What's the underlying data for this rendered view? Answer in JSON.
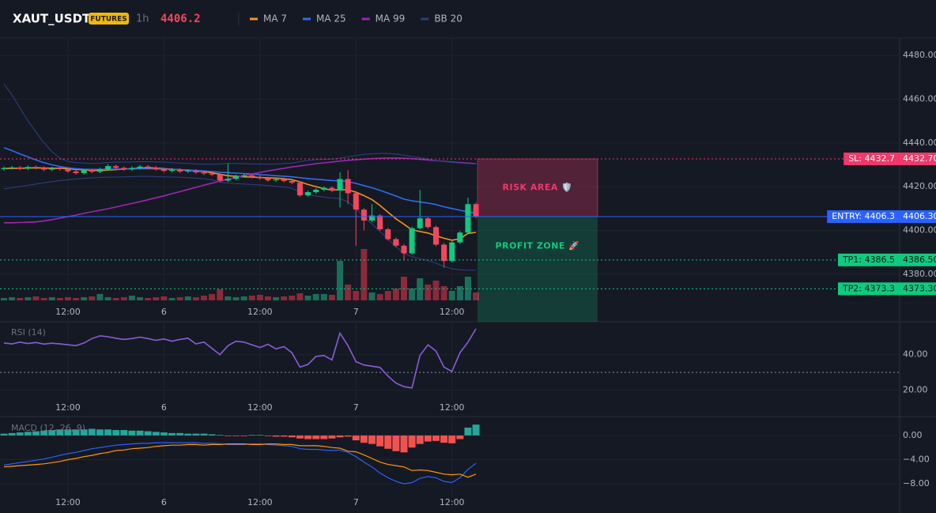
{
  "header": {
    "symbol": "XAUT_USDT",
    "badge": "FUTURES",
    "interval": "1h",
    "last_price": 4406.2
  },
  "chart_data": [
    {
      "type": "candlestick",
      "up_color": "#0ecb81",
      "down_color": "#f6465d",
      "volume_up_color": "#1b6e5c",
      "volume_down_color": "#8a2a3b",
      "grid": true,
      "categories": [
        null,
        null,
        null,
        null,
        null,
        null,
        null,
        null,
        "12:00",
        null,
        null,
        null,
        null,
        null,
        null,
        null,
        null,
        null,
        null,
        null,
        "6",
        null,
        null,
        null,
        null,
        null,
        null,
        null,
        null,
        null,
        null,
        null,
        "12:00",
        null,
        null,
        null,
        null,
        null,
        null,
        null,
        null,
        null,
        null,
        null,
        "7",
        null,
        null,
        null,
        null,
        null,
        null,
        null,
        null,
        null,
        null,
        null,
        "12:00",
        null,
        null,
        null
      ],
      "open": [
        4428.0,
        4428.5,
        4428.8,
        4428.2,
        4429.0,
        4428.6,
        4427.8,
        4428.4,
        4428.0,
        4427.0,
        4426.2,
        4427.5,
        4426.8,
        4428.0,
        4429.4,
        4428.6,
        4427.9,
        4428.5,
        4429.2,
        4428.7,
        4428.0,
        4427.2,
        4427.8,
        4426.9,
        4427.3,
        4426.5,
        4426.0,
        4425.5,
        4422.8,
        4423.6,
        4424.8,
        4425.2,
        4424.5,
        4423.8,
        4422.9,
        4423.4,
        4422.6,
        4421.8,
        4416.0,
        4417.5,
        4418.6,
        4419.5,
        4418.2,
        4423.5,
        4417.0,
        4409.5,
        4404.5,
        4406.8,
        4400.5,
        4396.0,
        4393.0,
        4389.5,
        4401.0,
        4405.5,
        4401.5,
        4393.5,
        4386.0,
        4394.5,
        4399.0,
        4412.0
      ],
      "high": [
        4429.2,
        4429.5,
        4429.5,
        4429.7,
        4429.7,
        4429.3,
        4429.1,
        4429.1,
        4428.7,
        4427.7,
        4428.2,
        4428.2,
        4428.7,
        4430.3,
        4430.1,
        4429.3,
        4429.4,
        4429.9,
        4429.9,
        4429.4,
        4428.7,
        4428.5,
        4428.5,
        4428.0,
        4428.0,
        4427.2,
        4426.7,
        4426.2,
        4430.5,
        4425.5,
        4425.9,
        4425.9,
        4425.2,
        4424.5,
        4424.1,
        4424.1,
        4423.3,
        4422.5,
        4418.2,
        4419.3,
        4420.2,
        4420.2,
        4426.5,
        4427.5,
        4418.0,
        4410.2,
        4412.0,
        4407.5,
        4401.2,
        4396.7,
        4393.7,
        4401.7,
        4418.5,
        4406.5,
        4402.2,
        4394.2,
        4395.2,
        4399.7,
        4415.0,
        4412.7
      ],
      "low": [
        4427.3,
        4427.8,
        4427.5,
        4427.5,
        4427.9,
        4427.1,
        4427.1,
        4427.3,
        4426.3,
        4425.5,
        4425.5,
        4426.1,
        4426.1,
        4427.3,
        4427.9,
        4427.2,
        4427.2,
        4427.8,
        4428.0,
        4427.3,
        4426.5,
        4426.5,
        4426.2,
        4426.2,
        4425.8,
        4425.3,
        4424.8,
        4422.1,
        4422.1,
        4422.9,
        4424.1,
        4423.8,
        4423.1,
        4422.2,
        4422.2,
        4421.9,
        4421.1,
        4415.3,
        4415.3,
        4416.8,
        4417.9,
        4417.5,
        4410.5,
        4412.0,
        4393.0,
        4400.0,
        4403.8,
        4399.8,
        4395.3,
        4392.3,
        4386.5,
        4388.8,
        4400.3,
        4400.8,
        4392.8,
        4383.0,
        4385.3,
        4393.8,
        4398.3,
        4405.5
      ],
      "close": [
        4428.5,
        4428.8,
        4428.2,
        4429.0,
        4428.6,
        4427.8,
        4428.4,
        4428.0,
        4427.0,
        4426.2,
        4427.5,
        4426.8,
        4428.0,
        4429.4,
        4428.6,
        4427.9,
        4428.5,
        4429.2,
        4428.7,
        4428.0,
        4427.2,
        4427.8,
        4426.9,
        4427.3,
        4426.5,
        4426.0,
        4425.5,
        4422.8,
        4423.6,
        4424.8,
        4425.2,
        4424.5,
        4423.8,
        4422.9,
        4423.4,
        4422.6,
        4421.8,
        4416.0,
        4417.5,
        4418.6,
        4419.5,
        4418.2,
        4423.5,
        4417.0,
        4409.5,
        4404.5,
        4406.8,
        4400.5,
        4396.0,
        4393.0,
        4389.5,
        4401.0,
        4405.5,
        4401.5,
        4393.5,
        4386.0,
        4394.5,
        4399.0,
        4412.0,
        4406.2
      ],
      "volume": [
        3,
        4,
        3,
        4,
        5,
        3,
        4,
        3,
        4,
        3,
        4,
        5,
        8,
        4,
        3,
        4,
        6,
        4,
        3,
        4,
        5,
        3,
        4,
        5,
        4,
        6,
        8,
        14,
        5,
        4,
        5,
        6,
        7,
        5,
        4,
        5,
        6,
        9,
        6,
        8,
        8,
        7,
        50,
        20,
        12,
        65,
        10,
        8,
        12,
        15,
        30,
        15,
        28,
        20,
        25,
        18,
        12,
        18,
        30,
        10
      ],
      "series": [
        {
          "name": "MA 7",
          "color": "#f7931a",
          "values": [
            4428.3,
            4428.4,
            4428.4,
            4428.5,
            4428.6,
            4428.5,
            4428.4,
            4428.4,
            4428.2,
            4427.9,
            4427.7,
            4427.5,
            4427.4,
            4427.6,
            4427.8,
            4428.0,
            4428.2,
            4428.5,
            4428.6,
            4428.5,
            4428.2,
            4428.0,
            4427.7,
            4427.5,
            4427.2,
            4426.9,
            4426.4,
            4425.6,
            4425.0,
            4424.7,
            4424.5,
            4424.4,
            4424.2,
            4424.0,
            4423.9,
            4423.6,
            4423.2,
            4422.2,
            4421.0,
            4420.0,
            4419.1,
            4418.4,
            4418.6,
            4418.6,
            4417.5,
            4415.9,
            4414.1,
            4411.4,
            4408.3,
            4405.3,
            4402.8,
            4400.2,
            4399.5,
            4398.8,
            4397.5,
            4396.4,
            4395.5,
            4396.2,
            4398.6,
            4399.1
          ]
        },
        {
          "name": "MA 25",
          "color": "#2f6bf0",
          "values": [
            4437.8,
            4436.5,
            4435.0,
            4433.6,
            4432.2,
            4431.0,
            4430.0,
            4429.2,
            4428.6,
            4428.2,
            4428.0,
            4427.9,
            4427.9,
            4428.0,
            4428.0,
            4428.1,
            4428.1,
            4428.2,
            4428.2,
            4428.1,
            4428.0,
            4427.9,
            4427.8,
            4427.6,
            4427.4,
            4427.2,
            4426.9,
            4426.6,
            4426.4,
            4426.2,
            4426.0,
            4425.8,
            4425.5,
            4425.3,
            4425.0,
            4424.8,
            4424.5,
            4424.1,
            4423.7,
            4423.4,
            4423.1,
            4422.8,
            4422.7,
            4422.3,
            4421.5,
            4420.5,
            4419.5,
            4418.3,
            4417.0,
            4415.7,
            4414.3,
            4413.5,
            4413.0,
            4412.5,
            4411.8,
            4410.8,
            4410.0,
            4409.2,
            4408.5,
            4407.8
          ]
        },
        {
          "name": "MA 99",
          "color": "#9c27b0",
          "values": [
            4403.5,
            4403.5,
            4403.6,
            4403.7,
            4403.9,
            4404.3,
            4404.9,
            4405.6,
            4406.3,
            4407.0,
            4407.8,
            4408.5,
            4409.2,
            4409.9,
            4410.7,
            4411.5,
            4412.3,
            4413.1,
            4414.0,
            4414.9,
            4415.8,
            4416.8,
            4417.7,
            4418.7,
            4419.7,
            4420.7,
            4421.6,
            4422.5,
            4423.4,
            4424.2,
            4425.0,
            4425.8,
            4426.5,
            4427.2,
            4427.8,
            4428.4,
            4429.0,
            4429.5,
            4430.0,
            4430.5,
            4430.9,
            4431.3,
            4431.7,
            4432.0,
            4432.3,
            4432.6,
            4432.8,
            4433.0,
            4433.1,
            4433.1,
            4433.0,
            4432.8,
            4432.5,
            4432.2,
            4431.9,
            4431.6,
            4431.3,
            4431.0,
            4430.8,
            4430.5
          ]
        },
        {
          "name": "BB 20",
          "color": "#2a3f7a",
          "upper": [
            4467,
            4462,
            4456,
            4450,
            4445,
            4440,
            4436,
            4433,
            4431.5,
            4431,
            4430.8,
            4430.6,
            4430.7,
            4431.0,
            4431.2,
            4431.2,
            4431.3,
            4431.4,
            4431.4,
            4431.3,
            4431.2,
            4431.0,
            4430.8,
            4430.6,
            4430.4,
            4430.3,
            4430.2,
            4430.4,
            4430.6,
            4430.6,
            4430.5,
            4430.4,
            4430.3,
            4430.3,
            4430.4,
            4430.6,
            4430.8,
            4431.5,
            4432.0,
            4432.3,
            4432.5,
            4432.6,
            4433.0,
            4433.6,
            4434.2,
            4434.8,
            4435.0,
            4435.2,
            4435.2,
            4434.9,
            4434.4,
            4433.8,
            4433.2,
            4432.6,
            4432.0,
            4431.5,
            4431.1,
            4430.8,
            4430.5,
            4430.3
          ],
          "lower": [
            4419,
            4419.5,
            4420,
            4420.6,
            4421.2,
            4421.8,
            4422.3,
            4422.8,
            4423.2,
            4423.5,
            4423.8,
            4424.0,
            4424.2,
            4424.3,
            4424.4,
            4424.5,
            4424.6,
            4424.7,
            4424.7,
            4424.6,
            4424.5,
            4424.4,
            4424.3,
            4424.1,
            4423.9,
            4423.6,
            4423.2,
            4422.0,
            4421.6,
            4421.4,
            4421.2,
            4421.0,
            4420.8,
            4420.5,
            4420.2,
            4419.8,
            4419.3,
            4417.5,
            4416.5,
            4415.8,
            4415.2,
            4414.8,
            4414.5,
            4413.0,
            4410.0,
            4406.0,
            4403.0,
            4399.5,
            4396.0,
            4392.5,
            4389.5,
            4388.0,
            4387.0,
            4386.2,
            4385.0,
            4383.5,
            4382.5,
            4382.0,
            4381.8,
            4381.8
          ]
        }
      ],
      "ylim": [
        4368,
        4488
      ],
      "yticks": [
        {
          "value": 4380,
          "label": "4380.00"
        },
        {
          "value": 4400,
          "label": "4400.00"
        },
        {
          "value": 4420,
          "label": "4420.00"
        },
        {
          "value": 4440,
          "label": "4440.00"
        },
        {
          "value": 4460,
          "label": "4460.00"
        },
        {
          "value": 4480,
          "label": "4480.00"
        }
      ],
      "levels": [
        {
          "label": "SL: 4432.7",
          "value": 4432.7,
          "price_label": "4432.70",
          "color": "#f0386b",
          "style": "dotted"
        },
        {
          "label": "ENTRY: 4406.3",
          "value": 4406.3,
          "price_label": "4406.30",
          "color": "#2962ff",
          "style": "solid"
        },
        {
          "label": "TP1: 4386.5",
          "value": 4386.5,
          "price_label": "4386.50",
          "color": "#0ecb81",
          "style": "dotted"
        },
        {
          "label": "TP2: 4373.3",
          "value": 4373.3,
          "price_label": "4373.30",
          "color": "#0ecb81",
          "style": "dotted"
        }
      ],
      "zones": [
        {
          "label": "RISK AREA 🛡️",
          "color": "#f0386b"
        },
        {
          "label": "PROFIT ZONE 🚀",
          "color": "#0ecb81"
        }
      ]
    },
    {
      "type": "line",
      "title": "RSI (14)",
      "color": "#8a5cd6",
      "categories": [
        null,
        null,
        null,
        null,
        null,
        null,
        null,
        null,
        "12:00",
        null,
        null,
        null,
        null,
        null,
        null,
        null,
        null,
        null,
        null,
        null,
        "6",
        null,
        null,
        null,
        null,
        null,
        null,
        null,
        null,
        null,
        null,
        null,
        "12:00",
        null,
        null,
        null,
        null,
        null,
        null,
        null,
        null,
        null,
        null,
        null,
        "7",
        null,
        null,
        null,
        null,
        null,
        null,
        null,
        null,
        null,
        null,
        null,
        "12:00",
        null,
        null,
        null
      ],
      "values": [
        46.5,
        46.0,
        47.0,
        46.2,
        46.8,
        45.9,
        46.4,
        46.0,
        45.5,
        45.0,
        46.5,
        49.0,
        50.5,
        50.0,
        49.2,
        48.5,
        49.0,
        49.8,
        49.0,
        48.0,
        48.8,
        47.5,
        48.5,
        49.2,
        46.0,
        47.0,
        43.5,
        40.0,
        45.0,
        47.5,
        47.0,
        45.5,
        44.0,
        45.8,
        43.2,
        44.5,
        41.0,
        33.0,
        34.5,
        39.0,
        39.5,
        37.0,
        52.0,
        45.0,
        36.0,
        34.2,
        33.5,
        32.8,
        28.0,
        24.0,
        22.0,
        21.3,
        39.5,
        45.5,
        42.0,
        33.0,
        30.5,
        41.0,
        47.0,
        54.5
      ],
      "ylim": [
        15,
        58
      ],
      "yticks": [
        {
          "value": 20,
          "label": "20.00"
        },
        {
          "value": 40,
          "label": "40.00"
        }
      ],
      "hlines": [
        30
      ]
    },
    {
      "type": "macd",
      "title": "MACD (12, 26, 9)",
      "positive_color": "#26a69a",
      "negative_color": "#ef5350",
      "macd_color": "#2962ff",
      "signal_color": "#ff9800",
      "categories": [
        null,
        null,
        null,
        null,
        null,
        null,
        null,
        null,
        "12:00",
        null,
        null,
        null,
        null,
        null,
        null,
        null,
        null,
        null,
        null,
        null,
        "6",
        null,
        null,
        null,
        null,
        null,
        null,
        null,
        null,
        null,
        null,
        null,
        "12:00",
        null,
        null,
        null,
        null,
        null,
        null,
        null,
        null,
        null,
        null,
        null,
        "7",
        null,
        null,
        null,
        null,
        null,
        null,
        null,
        null,
        null,
        null,
        null,
        "12:00",
        null,
        null,
        null
      ],
      "histogram": [
        0.3,
        0.4,
        0.5,
        0.6,
        0.7,
        0.8,
        0.9,
        1.0,
        1.0,
        1.0,
        1.0,
        1.1,
        1.0,
        1.0,
        0.9,
        0.9,
        0.8,
        0.8,
        0.7,
        0.6,
        0.5,
        0.4,
        0.4,
        0.3,
        0.3,
        0.3,
        0.2,
        0.1,
        -0.1,
        -0.1,
        -0.1,
        0.1,
        0.1,
        -0.1,
        -0.2,
        -0.2,
        -0.3,
        -0.5,
        -0.6,
        -0.6,
        -0.6,
        -0.5,
        -0.3,
        -0.2,
        -0.8,
        -1.2,
        -1.4,
        -1.8,
        -2.2,
        -2.6,
        -2.8,
        -2.0,
        -1.4,
        -1.0,
        -0.9,
        -1.2,
        -1.3,
        -0.6,
        1.3,
        1.8
      ],
      "macd": [
        -4.9,
        -4.7,
        -4.5,
        -4.3,
        -4.1,
        -3.9,
        -3.6,
        -3.3,
        -3.0,
        -2.8,
        -2.5,
        -2.2,
        -2.0,
        -1.8,
        -1.6,
        -1.5,
        -1.4,
        -1.3,
        -1.3,
        -1.2,
        -1.2,
        -1.2,
        -1.2,
        -1.2,
        -1.2,
        -1.3,
        -1.3,
        -1.4,
        -1.5,
        -1.5,
        -1.5,
        -1.4,
        -1.4,
        -1.5,
        -1.6,
        -1.7,
        -1.8,
        -2.2,
        -2.3,
        -2.3,
        -2.4,
        -2.5,
        -2.4,
        -2.8,
        -3.5,
        -4.4,
        -5.2,
        -6.2,
        -7.0,
        -7.6,
        -8.0,
        -7.8,
        -7.1,
        -6.8,
        -7.0,
        -7.6,
        -7.8,
        -7.0,
        -5.6,
        -4.6
      ],
      "signal": [
        -5.2,
        -5.1,
        -5.0,
        -4.9,
        -4.8,
        -4.7,
        -4.5,
        -4.3,
        -4.0,
        -3.8,
        -3.5,
        -3.3,
        -3.0,
        -2.8,
        -2.5,
        -2.4,
        -2.2,
        -2.1,
        -2.0,
        -1.8,
        -1.7,
        -1.6,
        -1.6,
        -1.5,
        -1.5,
        -1.6,
        -1.5,
        -1.5,
        -1.4,
        -1.4,
        -1.4,
        -1.5,
        -1.5,
        -1.4,
        -1.4,
        -1.5,
        -1.5,
        -1.7,
        -1.7,
        -1.7,
        -1.8,
        -2.0,
        -2.1,
        -2.6,
        -2.7,
        -3.2,
        -3.8,
        -4.4,
        -4.8,
        -5.0,
        -5.2,
        -5.8,
        -5.7,
        -5.8,
        -6.1,
        -6.4,
        -6.5,
        -6.4,
        -6.9,
        -6.4
      ],
      "ylim": [
        -9.3,
        3.0
      ],
      "yticks": [
        {
          "value": 0,
          "label": "0.00"
        },
        {
          "value": -4,
          "label": "−4.00"
        },
        {
          "value": -8,
          "label": "−8.00"
        }
      ]
    }
  ]
}
